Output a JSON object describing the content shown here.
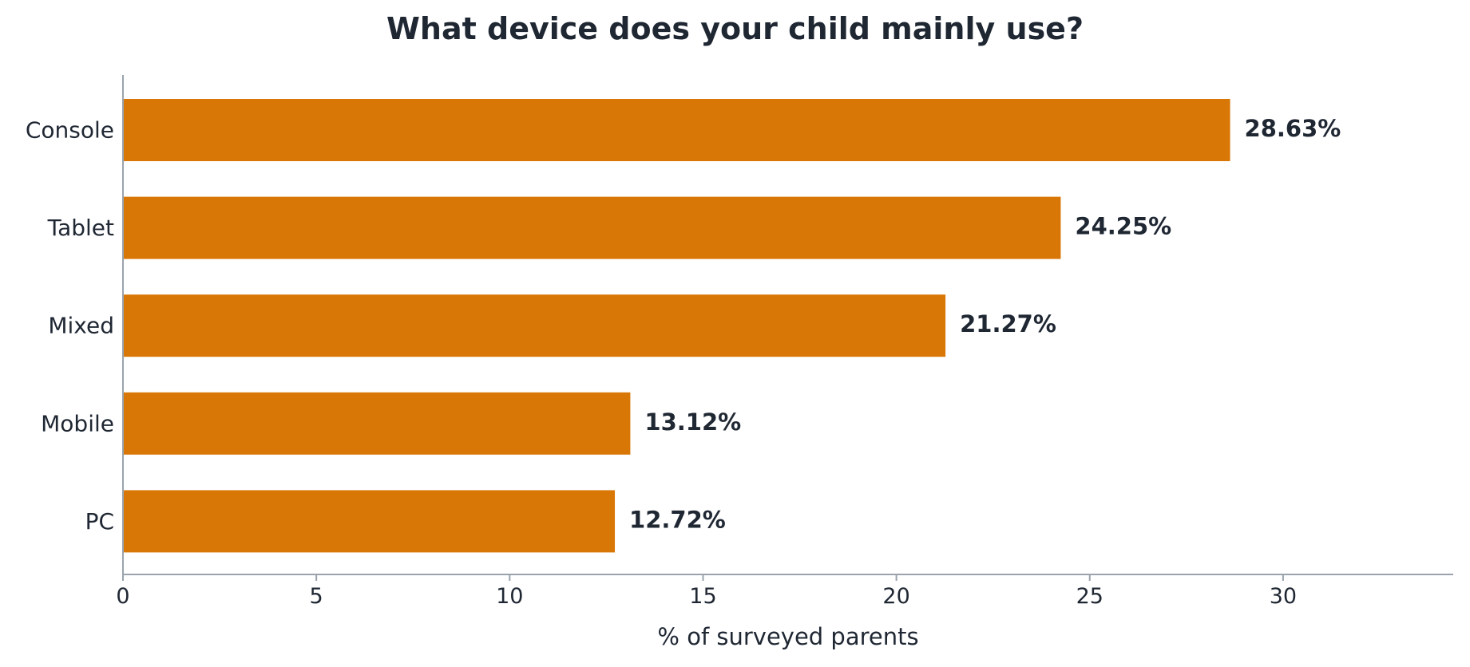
{
  "chart_data": {
    "type": "bar",
    "orientation": "horizontal",
    "title": "What device does your child mainly use?",
    "xlabel": "% of surveyed parents",
    "ylabel": "",
    "categories": [
      "Console",
      "Tablet",
      "Mixed",
      "Mobile",
      "PC"
    ],
    "values": [
      28.63,
      24.25,
      21.27,
      13.12,
      12.72
    ],
    "data_labels": [
      "28.63%",
      "24.25%",
      "21.27%",
      "13.12%",
      "12.72%"
    ],
    "xlim": [
      0,
      34.4
    ],
    "xticks": [
      0,
      5,
      10,
      15,
      20,
      25,
      30
    ],
    "grid": false,
    "bar_color": "#d97706",
    "text_color": "#1f2733",
    "axis_color": "#9aa3ad"
  }
}
